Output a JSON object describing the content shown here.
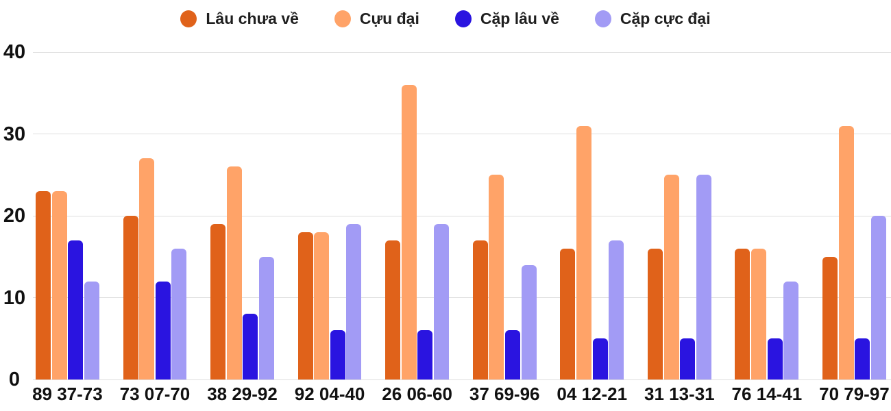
{
  "chart_data": {
    "type": "bar",
    "title": "",
    "xlabel": "",
    "ylabel": "",
    "ylim": [
      0,
      40
    ],
    "yticks": [
      0,
      10,
      20,
      30,
      40
    ],
    "grid": true,
    "legend_position": "top",
    "categories": [
      "89 37-73",
      "73 07-70",
      "38 29-92",
      "92 04-40",
      "26 06-60",
      "37 69-96",
      "04 12-21",
      "31 13-31",
      "76 14-41",
      "70 79-97"
    ],
    "series": [
      {
        "name": "Lâu chưa về",
        "color": "#E0621A",
        "values": [
          23,
          20,
          19,
          18,
          17,
          17,
          16,
          16,
          16,
          15
        ]
      },
      {
        "name": "Cựu đại",
        "color": "#FFA368",
        "values": [
          23,
          27,
          26,
          18,
          36,
          25,
          31,
          25,
          16,
          31
        ]
      },
      {
        "name": "Cặp lâu về",
        "color": "#2A14E0",
        "values": [
          17,
          12,
          8,
          6,
          6,
          6,
          5,
          5,
          5,
          5
        ]
      },
      {
        "name": "Cặp cực đại",
        "color": "#A29BF5",
        "values": [
          12,
          16,
          15,
          19,
          19,
          14,
          17,
          25,
          12,
          20
        ]
      }
    ],
    "colors": {
      "text": "#1f1f1f",
      "gridline": "#dedede"
    }
  }
}
